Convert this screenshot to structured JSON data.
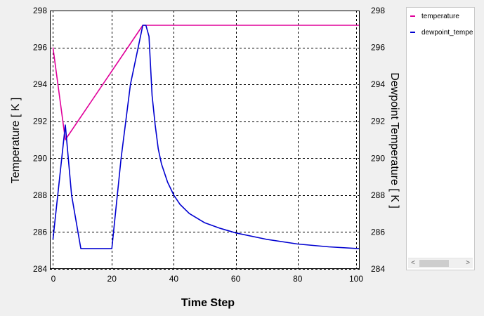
{
  "chart_data": {
    "type": "line",
    "xlabel": "Time Step",
    "ylabel_left": "Temperature [ K ]",
    "ylabel_right": "Dewpoint Temperature [ K ]",
    "xlim": [
      0,
      100
    ],
    "ylim": [
      284,
      298
    ],
    "xticks": [
      0,
      20,
      40,
      60,
      80,
      100
    ],
    "yticks": [
      284,
      286,
      288,
      290,
      292,
      294,
      296,
      298
    ],
    "grid": true,
    "legend_position": "right",
    "series": [
      {
        "name": "temperature",
        "color": "#e0009a",
        "axis": "left",
        "x": [
          1,
          5,
          30,
          100
        ],
        "y": [
          296.0,
          291.0,
          297.2,
          297.2
        ]
      },
      {
        "name": "dewpoint_temperature",
        "color": "#0000d0",
        "axis": "right",
        "x": [
          1,
          5,
          7,
          10,
          20,
          23,
          26,
          28,
          30,
          31,
          32,
          33,
          34,
          35,
          36,
          38,
          40,
          42,
          45,
          50,
          55,
          60,
          70,
          80,
          90,
          100
        ],
        "y": [
          285.6,
          291.8,
          288.0,
          285.1,
          285.1,
          290.0,
          294.0,
          295.6,
          297.2,
          297.2,
          296.6,
          293.4,
          291.8,
          290.5,
          289.7,
          288.7,
          288.0,
          287.5,
          287.0,
          286.5,
          286.2,
          285.95,
          285.6,
          285.35,
          285.2,
          285.1
        ]
      }
    ]
  },
  "legend": {
    "items": [
      {
        "label": "temperature",
        "color": "#e0009a"
      },
      {
        "label": "dewpoint_tempe",
        "color": "#0000d0"
      }
    ]
  }
}
